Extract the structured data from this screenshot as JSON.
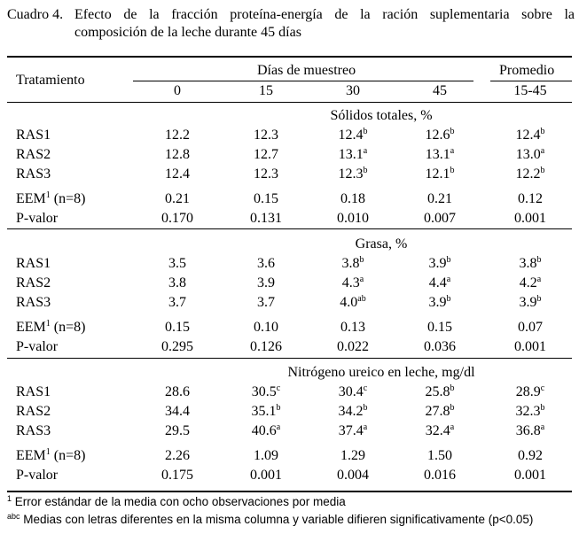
{
  "caption": {
    "label": "Cuadro 4.",
    "line1": "Efecto de la fracción proteína-energía de la ración suplementaria sobre la",
    "line2": "composición de la leche durante 45 días"
  },
  "header": {
    "treatment": "Tratamiento",
    "days_group": "Días de muestreo",
    "average_group": "Promedio",
    "columns": [
      "0",
      "15",
      "30",
      "45",
      "15-45"
    ]
  },
  "sections": [
    {
      "title": "Sólidos totales, %",
      "rows": [
        {
          "label": "RAS1",
          "sup": "",
          "cells": [
            [
              "12.2",
              ""
            ],
            [
              "12.3",
              ""
            ],
            [
              "12.4",
              "b"
            ],
            [
              "12.6",
              "b"
            ],
            [
              "12.4",
              "b"
            ]
          ]
        },
        {
          "label": "RAS2",
          "sup": "",
          "cells": [
            [
              "12.8",
              ""
            ],
            [
              "12.7",
              ""
            ],
            [
              "13.1",
              "a"
            ],
            [
              "13.1",
              "a"
            ],
            [
              "13.0",
              "a"
            ]
          ]
        },
        {
          "label": "RAS3",
          "sup": "",
          "cells": [
            [
              "12.4",
              ""
            ],
            [
              "12.3",
              ""
            ],
            [
              "12.3",
              "b"
            ],
            [
              "12.1",
              "b"
            ],
            [
              "12.2",
              "b"
            ]
          ]
        },
        {
          "label": "EEM",
          "sup": "1",
          "suffix": " (n=8)",
          "cells": [
            [
              "0.21",
              ""
            ],
            [
              "0.15",
              ""
            ],
            [
              "0.18",
              ""
            ],
            [
              "0.21",
              ""
            ],
            [
              "0.12",
              ""
            ]
          ]
        },
        {
          "label": "P-valor",
          "sup": "",
          "cells": [
            [
              "0.170",
              ""
            ],
            [
              "0.131",
              ""
            ],
            [
              "0.010",
              ""
            ],
            [
              "0.007",
              ""
            ],
            [
              "0.001",
              ""
            ]
          ]
        }
      ]
    },
    {
      "title": "Grasa, %",
      "rows": [
        {
          "label": "RAS1",
          "sup": "",
          "cells": [
            [
              "3.5",
              ""
            ],
            [
              "3.6",
              ""
            ],
            [
              "3.8",
              "b"
            ],
            [
              "3.9",
              "b"
            ],
            [
              "3.8",
              "b"
            ]
          ]
        },
        {
          "label": "RAS2",
          "sup": "",
          "cells": [
            [
              "3.8",
              ""
            ],
            [
              "3.9",
              ""
            ],
            [
              "4.3",
              "a"
            ],
            [
              "4.4",
              "a"
            ],
            [
              "4.2",
              "a"
            ]
          ]
        },
        {
          "label": "RAS3",
          "sup": "",
          "cells": [
            [
              "3.7",
              ""
            ],
            [
              "3.7",
              ""
            ],
            [
              "4.0",
              "ab"
            ],
            [
              "3.9",
              "b"
            ],
            [
              "3.9",
              "b"
            ]
          ]
        },
        {
          "label": "EEM",
          "sup": "1",
          "suffix": " (n=8)",
          "cells": [
            [
              "0.15",
              ""
            ],
            [
              "0.10",
              ""
            ],
            [
              "0.13",
              ""
            ],
            [
              "0.15",
              ""
            ],
            [
              "0.07",
              ""
            ]
          ]
        },
        {
          "label": "P-valor",
          "sup": "",
          "cells": [
            [
              "0.295",
              ""
            ],
            [
              "0.126",
              ""
            ],
            [
              "0.022",
              ""
            ],
            [
              "0.036",
              ""
            ],
            [
              "0.001",
              ""
            ]
          ]
        }
      ]
    },
    {
      "title": "Nitrógeno ureico en leche, mg/dl",
      "rows": [
        {
          "label": "RAS1",
          "sup": "",
          "cells": [
            [
              "28.6",
              ""
            ],
            [
              "30.5",
              "c"
            ],
            [
              "30.4",
              "c"
            ],
            [
              "25.8",
              "b"
            ],
            [
              "28.9",
              "c"
            ]
          ]
        },
        {
          "label": "RAS2",
          "sup": "",
          "cells": [
            [
              "34.4",
              ""
            ],
            [
              "35.1",
              "b"
            ],
            [
              "34.2",
              "b"
            ],
            [
              "27.8",
              "b"
            ],
            [
              "32.3",
              "b"
            ]
          ]
        },
        {
          "label": "RAS3",
          "sup": "",
          "cells": [
            [
              "29.5",
              ""
            ],
            [
              "40.6",
              "a"
            ],
            [
              "37.4",
              "a"
            ],
            [
              "32.4",
              "a"
            ],
            [
              "36.8",
              "a"
            ]
          ]
        },
        {
          "label": "EEM",
          "sup": "1",
          "suffix": " (n=8)",
          "cells": [
            [
              "2.26",
              ""
            ],
            [
              "1.09",
              ""
            ],
            [
              "1.29",
              ""
            ],
            [
              "1.50",
              ""
            ],
            [
              "0.92",
              ""
            ]
          ]
        },
        {
          "label": "P-valor",
          "sup": "",
          "cells": [
            [
              "0.175",
              ""
            ],
            [
              "0.001",
              ""
            ],
            [
              "0.004",
              ""
            ],
            [
              "0.016",
              ""
            ],
            [
              "0.001",
              ""
            ]
          ]
        }
      ]
    }
  ],
  "footnotes": [
    {
      "mark": "1",
      "text": " Error estándar de la media con ocho observaciones por media"
    },
    {
      "mark": "abc",
      "text": " Medias con letras diferentes en la misma columna y variable difieren significativamente (p<0.05)"
    }
  ]
}
